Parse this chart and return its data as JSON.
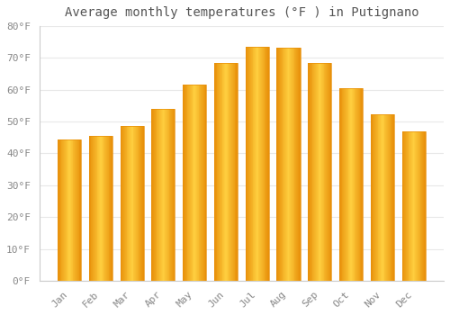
{
  "title": "Average monthly temperatures (°F ) in Putignano",
  "months": [
    "Jan",
    "Feb",
    "Mar",
    "Apr",
    "May",
    "Jun",
    "Jul",
    "Aug",
    "Sep",
    "Oct",
    "Nov",
    "Dec"
  ],
  "values": [
    44.5,
    45.5,
    48.7,
    54.0,
    61.5,
    68.5,
    73.5,
    73.3,
    68.5,
    60.5,
    52.2,
    46.8
  ],
  "bar_color_left": "#E8900A",
  "bar_color_center": "#FFD040",
  "bar_color_right": "#E8900A",
  "background_color": "#FFFFFF",
  "grid_color": "#E8E8E8",
  "ylim": [
    0,
    80
  ],
  "yticks": [
    0,
    10,
    20,
    30,
    40,
    50,
    60,
    70,
    80
  ],
  "ytick_labels": [
    "0°F",
    "10°F",
    "20°F",
    "30°F",
    "40°F",
    "50°F",
    "60°F",
    "70°F",
    "80°F"
  ],
  "title_fontsize": 10,
  "tick_fontsize": 8,
  "font_family": "monospace",
  "bar_width": 0.75,
  "spine_color": "#CCCCCC"
}
